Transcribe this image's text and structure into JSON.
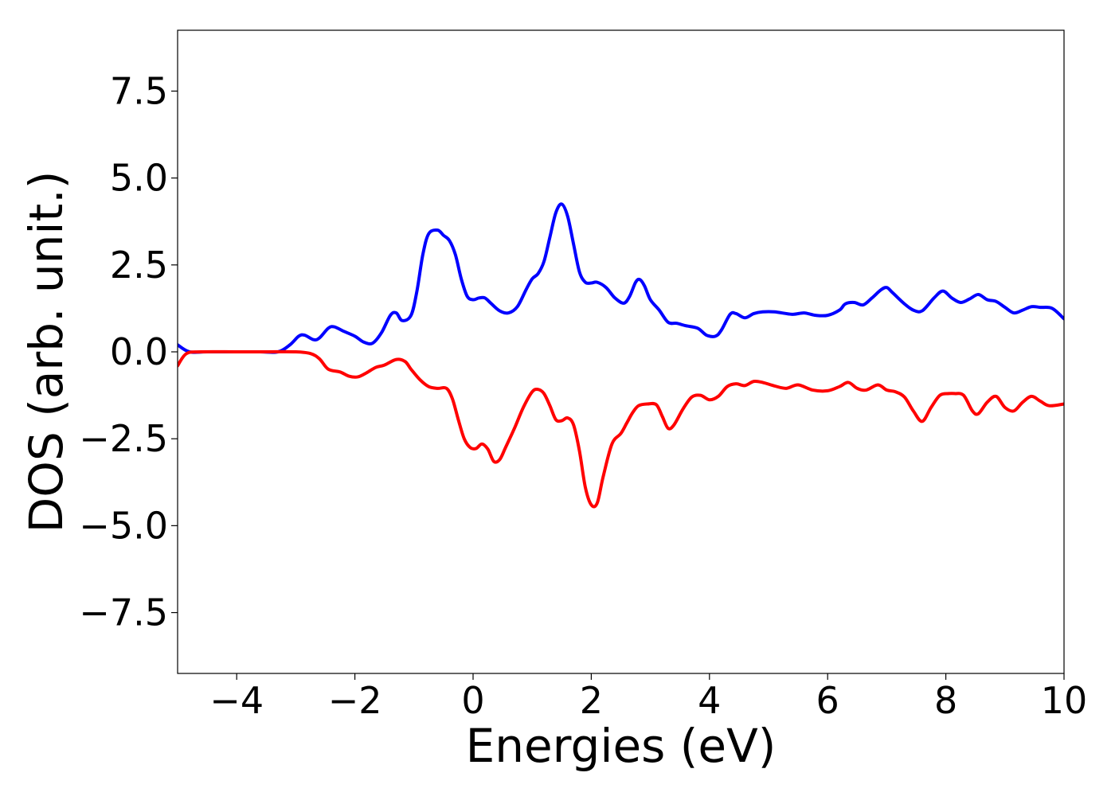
{
  "chart_data": {
    "type": "line",
    "title": "",
    "xlabel": "Energies (eV)",
    "ylabel": "DOS (arb. unit.)",
    "xlim": [
      -5,
      10
    ],
    "ylim": [
      -9.25,
      9.25
    ],
    "xticks": [
      -4,
      -2,
      0,
      2,
      4,
      6,
      8,
      10
    ],
    "xtick_labels": [
      "−4",
      "−2",
      "0",
      "2",
      "4",
      "6",
      "8",
      "10"
    ],
    "yticks": [
      -7.5,
      -5.0,
      -2.5,
      0.0,
      2.5,
      5.0,
      7.5
    ],
    "ytick_labels": [
      "−7.5",
      "−5.0",
      "−2.5",
      "0.0",
      "2.5",
      "5.0",
      "7.5"
    ],
    "grid": false,
    "legend": "none",
    "series": [
      {
        "color": "#0000ff",
        "x": [
          -5.0,
          -4.8,
          -4.5,
          -4.0,
          -3.6,
          -3.3,
          -3.1,
          -2.95,
          -2.85,
          -2.7,
          -2.6,
          -2.45,
          -2.35,
          -2.2,
          -2.0,
          -1.85,
          -1.7,
          -1.55,
          -1.4,
          -1.3,
          -1.2,
          -1.05,
          -0.95,
          -0.85,
          -0.75,
          -0.6,
          -0.5,
          -0.4,
          -0.3,
          -0.2,
          -0.1,
          0.0,
          0.1,
          0.2,
          0.3,
          0.45,
          0.6,
          0.75,
          0.9,
          1.0,
          1.1,
          1.2,
          1.3,
          1.4,
          1.5,
          1.6,
          1.7,
          1.8,
          1.9,
          2.0,
          2.1,
          2.25,
          2.4,
          2.55,
          2.65,
          2.75,
          2.82,
          2.9,
          3.0,
          3.15,
          3.3,
          3.45,
          3.6,
          3.8,
          3.95,
          4.1,
          4.2,
          4.35,
          4.45,
          4.6,
          4.75,
          4.9,
          5.1,
          5.4,
          5.6,
          5.8,
          6.0,
          6.2,
          6.3,
          6.45,
          6.6,
          6.75,
          6.9,
          7.0,
          7.1,
          7.3,
          7.45,
          7.6,
          7.8,
          7.95,
          8.1,
          8.25,
          8.4,
          8.55,
          8.7,
          8.85,
          9.0,
          9.15,
          9.3,
          9.45,
          9.6,
          9.8,
          10.0
        ],
        "y": [
          0.2,
          0.0,
          0.0,
          0.0,
          0.0,
          0.0,
          0.2,
          0.45,
          0.48,
          0.35,
          0.4,
          0.68,
          0.72,
          0.6,
          0.45,
          0.28,
          0.25,
          0.55,
          1.05,
          1.12,
          0.9,
          1.05,
          1.75,
          2.8,
          3.4,
          3.5,
          3.35,
          3.2,
          2.8,
          2.1,
          1.6,
          1.5,
          1.55,
          1.55,
          1.4,
          1.18,
          1.12,
          1.3,
          1.8,
          2.1,
          2.25,
          2.6,
          3.3,
          4.0,
          4.25,
          3.9,
          3.1,
          2.3,
          2.0,
          1.98,
          2.0,
          1.85,
          1.55,
          1.4,
          1.6,
          2.0,
          2.08,
          1.9,
          1.5,
          1.2,
          0.85,
          0.82,
          0.75,
          0.68,
          0.48,
          0.45,
          0.62,
          1.08,
          1.1,
          0.98,
          1.1,
          1.15,
          1.15,
          1.08,
          1.12,
          1.05,
          1.05,
          1.2,
          1.38,
          1.42,
          1.35,
          1.55,
          1.78,
          1.85,
          1.7,
          1.38,
          1.2,
          1.18,
          1.55,
          1.75,
          1.55,
          1.42,
          1.52,
          1.65,
          1.5,
          1.45,
          1.28,
          1.12,
          1.2,
          1.3,
          1.28,
          1.25,
          0.95
        ]
      },
      {
        "color": "#ff0000",
        "x": [
          -5.0,
          -4.85,
          -4.6,
          -4.0,
          -3.5,
          -3.0,
          -2.75,
          -2.6,
          -2.45,
          -2.25,
          -2.1,
          -1.95,
          -1.8,
          -1.65,
          -1.5,
          -1.3,
          -1.15,
          -1.05,
          -0.9,
          -0.75,
          -0.6,
          -0.45,
          -0.35,
          -0.25,
          -0.15,
          -0.05,
          0.05,
          0.15,
          0.25,
          0.35,
          0.45,
          0.55,
          0.7,
          0.85,
          1.0,
          1.1,
          1.2,
          1.3,
          1.4,
          1.5,
          1.6,
          1.7,
          1.8,
          1.9,
          2.0,
          2.1,
          2.2,
          2.35,
          2.5,
          2.6,
          2.7,
          2.8,
          2.95,
          3.1,
          3.2,
          3.3,
          3.4,
          3.55,
          3.7,
          3.85,
          4.0,
          4.15,
          4.3,
          4.45,
          4.6,
          4.75,
          4.9,
          5.1,
          5.3,
          5.5,
          5.75,
          6.0,
          6.2,
          6.35,
          6.5,
          6.65,
          6.85,
          7.0,
          7.15,
          7.3,
          7.45,
          7.6,
          7.75,
          7.9,
          8.05,
          8.15,
          8.3,
          8.45,
          8.55,
          8.7,
          8.85,
          9.0,
          9.15,
          9.3,
          9.45,
          9.6,
          9.75,
          10.0
        ],
        "y": [
          -0.4,
          -0.05,
          0.0,
          0.0,
          0.0,
          0.0,
          -0.05,
          -0.2,
          -0.5,
          -0.58,
          -0.7,
          -0.72,
          -0.6,
          -0.45,
          -0.38,
          -0.22,
          -0.28,
          -0.5,
          -0.8,
          -1.0,
          -1.05,
          -1.05,
          -1.35,
          -1.95,
          -2.5,
          -2.75,
          -2.78,
          -2.65,
          -2.8,
          -3.15,
          -3.1,
          -2.75,
          -2.2,
          -1.6,
          -1.15,
          -1.08,
          -1.2,
          -1.55,
          -1.95,
          -1.98,
          -1.9,
          -2.1,
          -2.85,
          -3.9,
          -4.4,
          -4.35,
          -3.6,
          -2.65,
          -2.35,
          -2.05,
          -1.75,
          -1.55,
          -1.5,
          -1.52,
          -1.85,
          -2.2,
          -2.1,
          -1.65,
          -1.3,
          -1.25,
          -1.38,
          -1.28,
          -1.0,
          -0.92,
          -0.97,
          -0.85,
          -0.88,
          -0.98,
          -1.05,
          -0.95,
          -1.1,
          -1.12,
          -1.0,
          -0.88,
          -1.05,
          -1.1,
          -0.95,
          -1.1,
          -1.15,
          -1.3,
          -1.7,
          -2.0,
          -1.6,
          -1.25,
          -1.2,
          -1.2,
          -1.25,
          -1.7,
          -1.78,
          -1.45,
          -1.28,
          -1.6,
          -1.7,
          -1.45,
          -1.28,
          -1.42,
          -1.55,
          -1.5
        ]
      }
    ]
  }
}
